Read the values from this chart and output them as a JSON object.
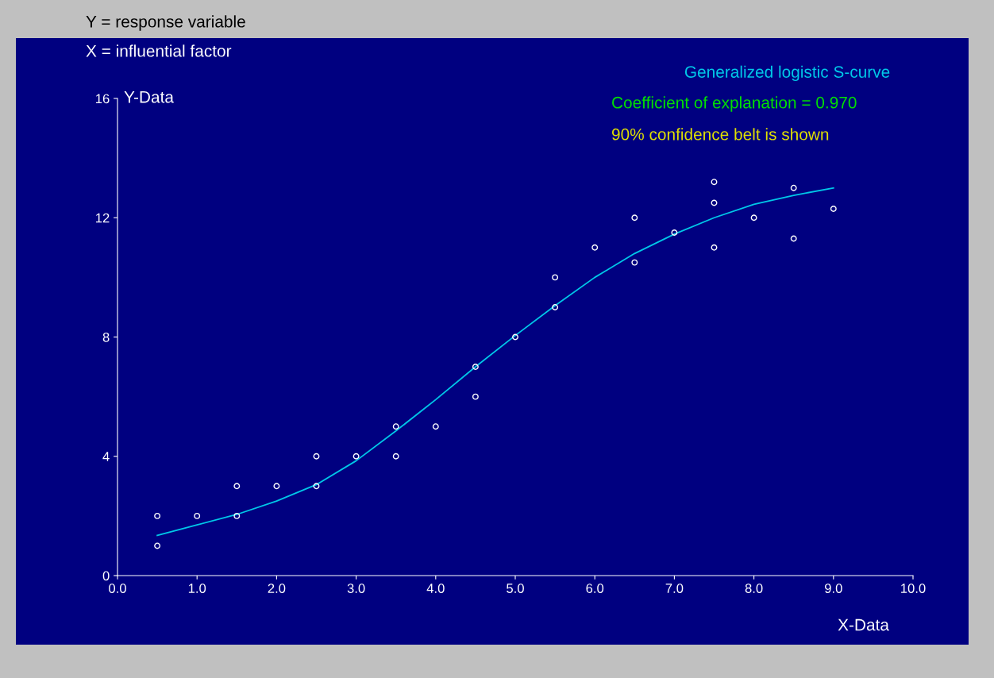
{
  "chart_data": {
    "type": "scatter",
    "title": "Y = response variable",
    "subtitle": "X = influential factor",
    "xlabel": "X-Data",
    "ylabel": "Y-Data",
    "annotations": [
      "Coefficient of explanation = 0.970",
      "90% confidence belt is shown"
    ],
    "series": [
      {
        "color": "#ffffff",
        "marker": "circle",
        "x": [
          0.5,
          0.5,
          1.0,
          1.5,
          1.5,
          2.0,
          2.5,
          2.5,
          3.0,
          3.5,
          3.5,
          4.0,
          4.5,
          4.5,
          5.0,
          5.5,
          5.5,
          6.0,
          6.5,
          6.5,
          7.0,
          7.5,
          7.5,
          7.5,
          8.0,
          8.5,
          8.5,
          9.0
        ],
        "values": [
          2,
          1,
          2,
          3,
          2,
          3,
          4,
          3,
          4,
          5,
          4,
          5,
          7,
          6,
          8,
          10,
          9,
          11,
          12,
          10.5,
          11.5,
          13.2,
          12.5,
          11,
          12,
          13,
          11.3,
          12.3
        ]
      },
      {
        "type": "line",
        "name": "Generalized logistic S-curve",
        "color": "#00c8e8",
        "marker": "none",
        "x": [
          0.5,
          1.0,
          1.5,
          2.0,
          2.5,
          3.0,
          3.5,
          4.0,
          4.5,
          5.0,
          5.5,
          6.0,
          6.5,
          7.0,
          7.5,
          8.0,
          8.5,
          9.0
        ],
        "values": [
          1.35,
          1.7,
          2.05,
          2.5,
          3.05,
          3.85,
          4.85,
          5.9,
          7.0,
          8.05,
          9.05,
          10.0,
          10.8,
          11.45,
          12.0,
          12.45,
          12.75,
          13.0
        ]
      }
    ],
    "xlim": [
      0,
      10
    ],
    "ylim": [
      0,
      16
    ],
    "xticks": [
      {
        "value": 0,
        "label": "0.0"
      },
      {
        "value": 1,
        "label": "1.0"
      },
      {
        "value": 2,
        "label": "2.0"
      },
      {
        "value": 3,
        "label": "3.0"
      },
      {
        "value": 4,
        "label": "4.0"
      },
      {
        "value": 5,
        "label": "5.0"
      },
      {
        "value": 6,
        "label": "6.0"
      },
      {
        "value": 7,
        "label": "7.0"
      },
      {
        "value": 8,
        "label": "8.0"
      },
      {
        "value": 9,
        "label": "9.0"
      },
      {
        "value": 10,
        "label": "10.0"
      }
    ],
    "yticks": [
      0,
      4,
      8,
      12,
      16
    ],
    "grid": false,
    "legend": "top right"
  }
}
